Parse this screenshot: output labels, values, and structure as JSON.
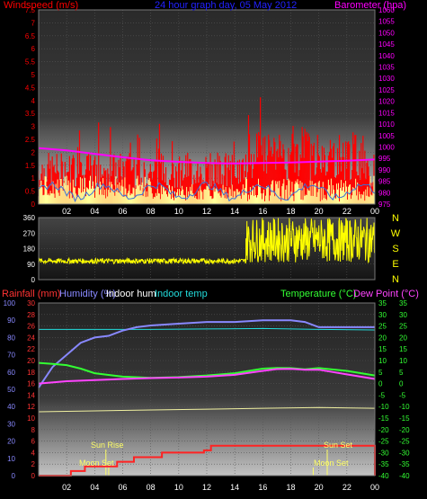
{
  "chart_data": [
    {
      "type": "line",
      "title": "24 hour graph day, 05 May 2012",
      "left_axis_label": "Windspeed (m/s)",
      "right_axis_label": "Barometer (hpa)",
      "x_ticks": [
        "02",
        "04",
        "06",
        "08",
        "10",
        "12",
        "14",
        "16",
        "18",
        "20",
        "22",
        "00"
      ],
      "left_ticks": [
        "0",
        "0.5",
        "1",
        "1.5",
        "2",
        "2.5",
        "3",
        "3.5",
        "4",
        "4.5",
        "5",
        "5.5",
        "6",
        "6.5",
        "7",
        "7.5"
      ],
      "right_ticks": [
        "975",
        "980",
        "985",
        "990",
        "995",
        "1000",
        "1005",
        "1010",
        "1015",
        "1020",
        "1025",
        "1030",
        "1035",
        "1040",
        "1045",
        "1050",
        "1055",
        "1060"
      ],
      "ylim_left": [
        0,
        7.5
      ],
      "ylim_right": [
        975,
        1060
      ],
      "colors": {
        "gust": "#ff0000",
        "speed": "#ffff99",
        "barometer": "#ff00ff",
        "avg": "#3a6fd8",
        "left_label": "#ff0000",
        "right_label": "#ff00ff",
        "title": "#2222ff"
      },
      "barometer": {
        "hours": [
          0,
          2,
          4,
          6,
          8,
          10,
          12,
          14,
          16,
          18,
          20,
          22,
          24
        ],
        "values": [
          999.5,
          998.5,
          997,
          995.5,
          994.2,
          993.5,
          993,
          992.8,
          993,
          993.2,
          993.6,
          994,
          994.5
        ]
      }
    },
    {
      "type": "line",
      "right_letters": [
        "N",
        "W",
        "S",
        "E",
        "N"
      ],
      "ticks": [
        "0",
        "90",
        "180",
        "270",
        "360"
      ],
      "ylim": [
        0,
        360
      ],
      "color": "#ffff00",
      "segments": [
        {
          "from_hour": 0,
          "to_hour": 14.8,
          "level": 108,
          "spread": 15
        },
        {
          "from_hour": 14.8,
          "to_hour": 24,
          "level": 230,
          "spread": 130
        }
      ]
    },
    {
      "type": "line",
      "labels": {
        "rainfall": "Rainfall (mm)",
        "humidity": "Humidity (%)",
        "indoor_hum": "Indoor hum",
        "indoor_temp": "Indoor temp",
        "temperature": "Temperature (°C)",
        "dew_point": "Dew Point (°C)"
      },
      "label_colors": {
        "rainfall": "#ff3333",
        "humidity": "#8888ff",
        "indoor_hum": "#ffffff",
        "indoor_temp": "#22dddd",
        "temperature": "#33ff33",
        "dew_point": "#ff44ff"
      },
      "x_ticks": [
        "02",
        "04",
        "06",
        "08",
        "10",
        "12",
        "14",
        "16",
        "18",
        "20",
        "22",
        "00"
      ],
      "rain_ticks": [
        "0",
        "2",
        "4",
        "6",
        "8",
        "10",
        "12",
        "14",
        "16",
        "18",
        "20",
        "22",
        "24",
        "26",
        "28",
        "30"
      ],
      "humidity_ticks": [
        "0",
        "10",
        "20",
        "30",
        "40",
        "50",
        "60",
        "70",
        "80",
        "90",
        "100"
      ],
      "temp_ticks": [
        "-40",
        "-35",
        "-30",
        "-25",
        "-20",
        "-15",
        "-10",
        "-5",
        "0",
        "5",
        "10",
        "15",
        "20",
        "25",
        "30",
        "35"
      ],
      "ylim_rain": [
        0,
        30
      ],
      "ylim_humidity": [
        0,
        100
      ],
      "ylim_temp": [
        -40,
        35
      ],
      "series": {
        "humidity": {
          "hours": [
            0,
            1,
            2,
            3,
            4,
            5,
            6,
            7,
            8,
            10,
            12,
            14,
            16,
            18,
            19,
            20,
            22,
            24
          ],
          "values": [
            51,
            63,
            70,
            77,
            80,
            81,
            84,
            86,
            87,
            88,
            89,
            89,
            90,
            90,
            89,
            86,
            86,
            86
          ]
        },
        "indoor_hum": {
          "hours": [
            0,
            4,
            8,
            12,
            16,
            20,
            24
          ],
          "values": [
            37,
            37.5,
            38,
            38.5,
            39,
            39.5,
            39
          ]
        },
        "indoor_temp": {
          "hours": [
            0,
            4,
            8,
            12,
            16,
            20,
            24
          ],
          "values": [
            23.5,
            23.5,
            23.5,
            23.7,
            23.9,
            23.5,
            23.3
          ]
        },
        "temperature": {
          "hours": [
            0,
            1,
            2,
            3,
            4,
            6,
            8,
            10,
            12,
            14,
            16,
            17,
            18,
            19,
            20,
            22,
            24
          ],
          "values": [
            9,
            8.5,
            8,
            6.5,
            4.5,
            3,
            2.5,
            2.8,
            3.5,
            4.5,
            6.5,
            6.8,
            6.7,
            6.2,
            6.7,
            5.5,
            3.5
          ]
        },
        "dew_point": {
          "hours": [
            0,
            2,
            4,
            6,
            8,
            10,
            12,
            14,
            16,
            17,
            18,
            19,
            20,
            22,
            24
          ],
          "values": [
            0,
            1,
            1.5,
            2,
            2.4,
            2.6,
            3,
            3.8,
            5.5,
            6.3,
            6.4,
            6,
            6,
            4,
            2
          ]
        },
        "rainfall": {
          "hours": [
            0,
            2.3,
            3.3,
            5.6,
            6.8,
            8.8,
            11.8,
            12.3,
            24
          ],
          "values": [
            0,
            0.8,
            1.6,
            2.4,
            3.2,
            4,
            4.4,
            5.2,
            5.2
          ]
        }
      },
      "annotations": {
        "sun_rise": "Sun Rise",
        "moon_set": "Moon Set",
        "sun_set": "Sun Set",
        "moon_set_right": "Moon Set"
      }
    }
  ]
}
